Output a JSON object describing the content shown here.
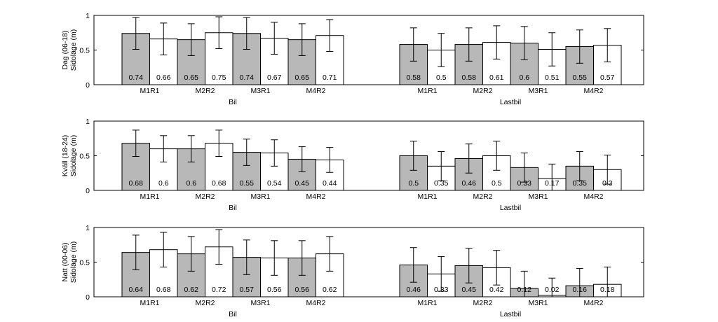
{
  "chart_data": [
    {
      "type": "bar",
      "ylabel": "Dag (06-18)\nSidoläge (m)",
      "ylim": [
        0,
        1
      ],
      "yticks": [
        "0",
        "0.5",
        "1"
      ],
      "grid": false,
      "series": [
        {
          "name": "",
          "colors": [
            "#b8b8b8",
            "#ffffff"
          ]
        }
      ],
      "groups": [
        {
          "xlabel": "Bil",
          "tick_labels": [
            "M1R1",
            "M2R2",
            "M3R1",
            "M4R2"
          ],
          "values": [
            0.74,
            0.66,
            0.65,
            0.75,
            0.74,
            0.67,
            0.65,
            0.71
          ],
          "value_labels": [
            "0.74",
            "0.66",
            "0.65",
            "0.75",
            "0.74",
            "0.67",
            "0.65",
            "0.71"
          ],
          "errors": [
            0.23,
            0.23,
            0.23,
            0.23,
            0.23,
            0.23,
            0.23,
            0.23
          ]
        },
        {
          "xlabel": "Lastbil",
          "tick_labels": [
            "M1R1",
            "M2R2",
            "M3R1",
            "M4R2"
          ],
          "values": [
            0.58,
            0.5,
            0.58,
            0.61,
            0.6,
            0.51,
            0.55,
            0.57
          ],
          "value_labels": [
            "0.58",
            "0.5",
            "0.58",
            "0.61",
            "0.6",
            "0.51",
            "0.55",
            "0.57"
          ],
          "errors": [
            0.24,
            0.24,
            0.24,
            0.24,
            0.24,
            0.24,
            0.24,
            0.24
          ]
        }
      ]
    },
    {
      "type": "bar",
      "ylabel": "Kväll (18-24)\nSidoläge (m)",
      "ylim": [
        0,
        1
      ],
      "yticks": [
        "0",
        "0.5",
        "1"
      ],
      "grid": false,
      "groups": [
        {
          "xlabel": "Bil",
          "tick_labels": [
            "M1R1",
            "M2R2",
            "M3R1",
            "M4R2"
          ],
          "values": [
            0.68,
            0.6,
            0.6,
            0.68,
            0.55,
            0.54,
            0.45,
            0.44
          ],
          "value_labels": [
            "0.68",
            "0.6",
            "0.6",
            "0.68",
            "0.55",
            "0.54",
            "0.45",
            "0.44"
          ],
          "errors": [
            0.19,
            0.19,
            0.19,
            0.19,
            0.19,
            0.19,
            0.18,
            0.18
          ]
        },
        {
          "xlabel": "Lastbil",
          "tick_labels": [
            "M1R1",
            "M2R2",
            "M3R1",
            "M4R2"
          ],
          "values": [
            0.5,
            0.35,
            0.46,
            0.5,
            0.33,
            0.17,
            0.35,
            0.3
          ],
          "value_labels": [
            "0.5",
            "0.35",
            "0.46",
            "0.5",
            "0.33",
            "0.17",
            "0.35",
            "0.3"
          ],
          "errors": [
            0.21,
            0.21,
            0.21,
            0.21,
            0.21,
            0.21,
            0.21,
            0.21
          ]
        }
      ]
    },
    {
      "type": "bar",
      "ylabel": "Natt (00-06)\nSidoläge (m)",
      "ylim": [
        0,
        1
      ],
      "yticks": [
        "0",
        "0.5",
        "1"
      ],
      "grid": false,
      "groups": [
        {
          "xlabel": "Bil",
          "tick_labels": [
            "M1R1",
            "M2R2",
            "M3R1",
            "M4R2"
          ],
          "values": [
            0.64,
            0.68,
            0.62,
            0.72,
            0.57,
            0.56,
            0.56,
            0.62
          ],
          "value_labels": [
            "0.64",
            "0.68",
            "0.62",
            "0.72",
            "0.57",
            "0.56",
            "0.56",
            "0.62"
          ],
          "errors": [
            0.25,
            0.25,
            0.25,
            0.25,
            0.25,
            0.25,
            0.25,
            0.25
          ]
        },
        {
          "xlabel": "Lastbil",
          "tick_labels": [
            "M1R1",
            "M2R2",
            "M3R1",
            "M4R2"
          ],
          "values": [
            0.46,
            0.33,
            0.45,
            0.42,
            0.12,
            0.02,
            0.16,
            0.18
          ],
          "value_labels": [
            "0.46",
            "0.33",
            "0.45",
            "0.42",
            "0.12",
            "0.02",
            "0.16",
            "0.18"
          ],
          "errors": [
            0.25,
            0.25,
            0.25,
            0.25,
            0.25,
            0.25,
            0.25,
            0.25
          ]
        }
      ]
    }
  ],
  "colors": {
    "filled_bar": "#b8b8b8",
    "open_bar": "#ffffff",
    "stroke": "#000000"
  }
}
